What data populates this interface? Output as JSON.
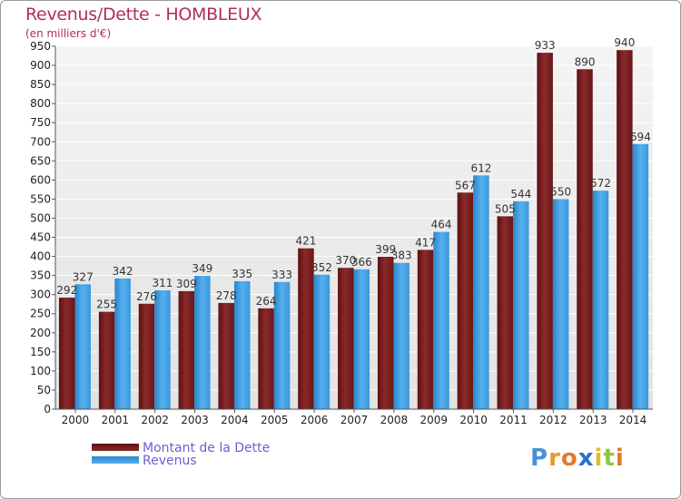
{
  "title": "Revenus/Dette - HOMBLEUX",
  "subtitle": "(en milliers d'€)",
  "colors": {
    "title": "#b03050",
    "dette": "#7a1c1c",
    "revenus": "#3d9ee0",
    "legend_text": "#6b5fd0"
  },
  "chart_data": {
    "type": "bar",
    "categories": [
      "2000",
      "2001",
      "2002",
      "2003",
      "2004",
      "2005",
      "2006",
      "2007",
      "2008",
      "2009",
      "2010",
      "2011",
      "2012",
      "2013",
      "2014"
    ],
    "series": [
      {
        "name": "Montant de la Dette",
        "values": [
          292,
          255,
          276,
          309,
          278,
          264,
          421,
          370,
          399,
          417,
          567,
          505,
          933,
          890,
          940
        ]
      },
      {
        "name": "Revenus",
        "values": [
          327,
          342,
          311,
          349,
          335,
          333,
          352,
          366,
          383,
          464,
          612,
          544,
          550,
          572,
          694
        ]
      }
    ],
    "ylim": [
      0,
      950
    ],
    "yticks": [
      0,
      50,
      100,
      150,
      200,
      250,
      300,
      350,
      400,
      450,
      500,
      550,
      600,
      650,
      700,
      750,
      800,
      850,
      900,
      950
    ],
    "grid": true,
    "legend": "bottom-left"
  },
  "legend": {
    "dette_label": "Montant de la Dette",
    "revenus_label": "Revenus"
  },
  "logo": {
    "letters": [
      "P",
      "r",
      "o",
      "x",
      "i",
      "t",
      "i"
    ],
    "letter_colors": [
      "#4a90d9",
      "#e89a2a",
      "#e07a30",
      "#2a6fd0",
      "#e0c020",
      "#8cc63f",
      "#e07a30"
    ]
  }
}
